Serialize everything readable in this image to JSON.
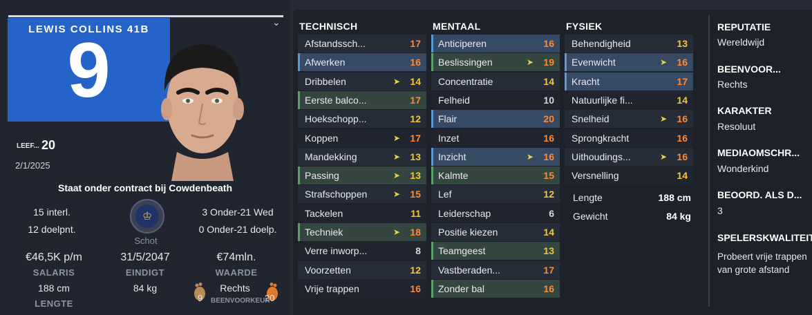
{
  "player": {
    "shirt_name": "LEWIS COLLINS 41B",
    "shirt_number": "9",
    "age_label": "LEEF...",
    "age": "20",
    "date": "2/1/2025",
    "contract": "Staat onder contract bij Cowdenbeath",
    "caps": "15 interl.",
    "goals": "12 doelpnt.",
    "u21_caps": "3 Onder-21 Wed",
    "u21_goals": "0 Onder-21 doelp.",
    "nation": "Schot",
    "salary": "€46,5K p/m",
    "salary_label": "SALARIS",
    "contract_end": "31/5/2047",
    "contract_end_label": "EINDIGT",
    "value": "€74mln.",
    "value_label": "WAARDE",
    "height": "188 cm",
    "height_label": "LENGTE",
    "weight": "84 kg",
    "foot": "Rechts",
    "left_foot_rating": "9",
    "right_foot_rating": "20",
    "foot_label": "BEENVOORKEUR"
  },
  "columns": {
    "technical": "TECHNISCH",
    "mental": "MENTAAL",
    "physical": "FYSIEK"
  },
  "technical": [
    {
      "name": "Afstandssch...",
      "value": "17"
    },
    {
      "name": "Afwerken",
      "value": "16"
    },
    {
      "name": "Dribbelen",
      "value": "14"
    },
    {
      "name": "Eerste balco...",
      "value": "17"
    },
    {
      "name": "Hoekschopp...",
      "value": "12"
    },
    {
      "name": "Koppen",
      "value": "17"
    },
    {
      "name": "Mandekking",
      "value": "13"
    },
    {
      "name": "Passing",
      "value": "13"
    },
    {
      "name": "Strafschoppen",
      "value": "15"
    },
    {
      "name": "Tackelen",
      "value": "11"
    },
    {
      "name": "Techniek",
      "value": "18"
    },
    {
      "name": "Verre inworp...",
      "value": "8"
    },
    {
      "name": "Voorzetten",
      "value": "12"
    },
    {
      "name": "Vrije trappen",
      "value": "16"
    }
  ],
  "mental": [
    {
      "name": "Anticiperen",
      "value": "16"
    },
    {
      "name": "Beslissingen",
      "value": "19"
    },
    {
      "name": "Concentratie",
      "value": "14"
    },
    {
      "name": "Felheid",
      "value": "10"
    },
    {
      "name": "Flair",
      "value": "20"
    },
    {
      "name": "Inzet",
      "value": "16"
    },
    {
      "name": "Inzicht",
      "value": "16"
    },
    {
      "name": "Kalmte",
      "value": "15"
    },
    {
      "name": "Lef",
      "value": "12"
    },
    {
      "name": "Leiderschap",
      "value": "6"
    },
    {
      "name": "Positie kiezen",
      "value": "14"
    },
    {
      "name": "Teamgeest",
      "value": "13"
    },
    {
      "name": "Vastberaden...",
      "value": "17"
    },
    {
      "name": "Zonder bal",
      "value": "16"
    }
  ],
  "physical": [
    {
      "name": "Behendigheid",
      "value": "13"
    },
    {
      "name": "Evenwicht",
      "value": "16"
    },
    {
      "name": "Kracht",
      "value": "17"
    },
    {
      "name": "Natuurlijke fi...",
      "value": "14"
    },
    {
      "name": "Snelheid",
      "value": "16"
    },
    {
      "name": "Sprongkracht",
      "value": "16"
    },
    {
      "name": "Uithoudings...",
      "value": "16"
    },
    {
      "name": "Versnelling",
      "value": "14"
    }
  ],
  "physical_extra": {
    "height_label": "Lengte",
    "height": "188 cm",
    "weight_label": "Gewicht",
    "weight": "84 kg"
  },
  "info": {
    "reputation_label": "REPUTATIE",
    "reputation": "Wereldwijd",
    "foot_label": "BEENVOOR...",
    "foot": "Rechts",
    "character_label": "KARAKTER",
    "character": "Resoluut",
    "media_label": "MEDIAOMSCHR...",
    "media": "Wonderkind",
    "rated_label": "BEOORD. ALS D...",
    "rated": "3",
    "quality_label": "SPELERSKWALITEIT",
    "quality": "Probeert vrije trappen van grote afstand"
  },
  "colors": {
    "highlight_blue": "#374a64",
    "highlight_green": "#33463f",
    "value_orange": "#ff8a33",
    "value_yellow": "#f2c83a"
  }
}
